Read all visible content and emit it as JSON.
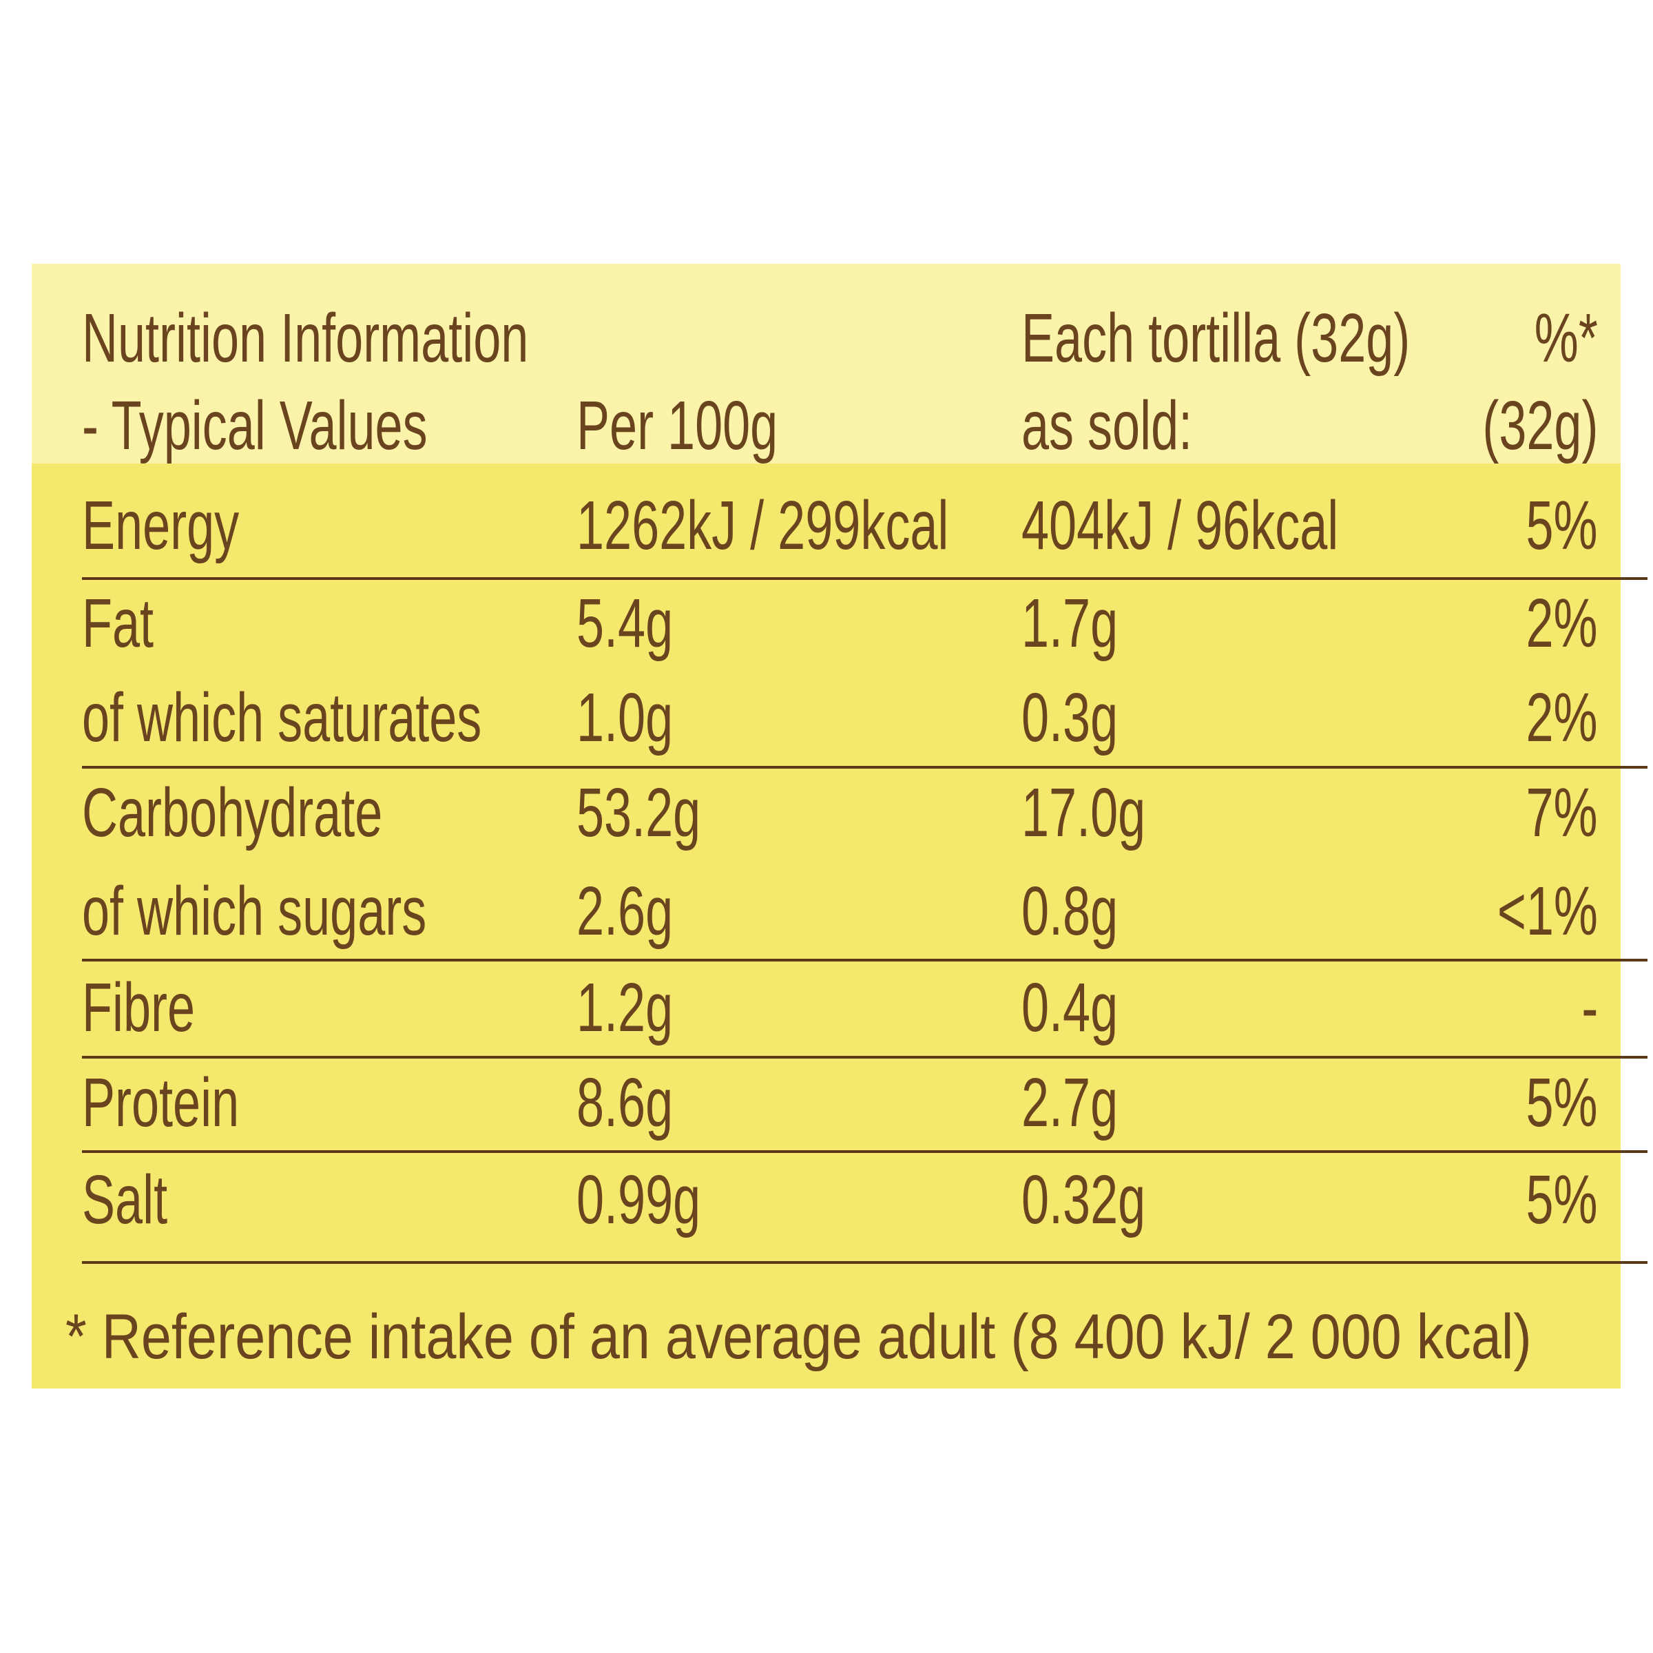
{
  "header": {
    "title_line1": "Nutrition Information",
    "title_line2": "- Typical Values",
    "per_100g": "Per 100g",
    "each_line1": "Each tortilla (32g)",
    "each_line2": "as sold:",
    "ri_line1": "%*",
    "ri_line2": "(32g)"
  },
  "table": {
    "rows": [
      [
        "Energy",
        "1262kJ / 299kcal",
        "404kJ / 96kcal",
        "5%"
      ],
      [
        "Fat",
        "5.4g",
        "1.7g",
        "2%"
      ],
      [
        "of which saturates",
        "1.0g",
        "0.3g",
        "2%"
      ],
      [
        "Carbohydrate",
        "53.2g",
        "17.0g",
        "7%"
      ],
      [
        "of which sugars",
        "2.6g",
        "0.8g",
        "<1%"
      ],
      [
        "Fibre",
        "1.2g",
        "0.4g",
        "-"
      ],
      [
        "Protein",
        "8.6g",
        "2.7g",
        "5%"
      ],
      [
        "Salt",
        "0.99g",
        "0.32g",
        "5%"
      ]
    ]
  },
  "footnote": "* Reference intake of an average adult (8 400 kJ/ 2 000 kcal)"
}
